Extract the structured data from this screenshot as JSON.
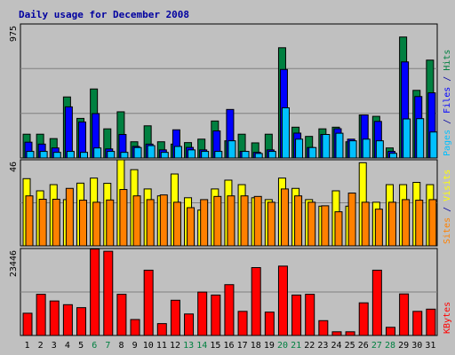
{
  "colors": {
    "background": "#C0C0C0",
    "plot_background": "#C0C0C0",
    "frame": "#000000",
    "title": "#0000A0",
    "grid": "#808080",
    "tick_text": "#000000",
    "weekend_tick_text": "#008040",
    "hits": "#008040",
    "files": "#0000FF",
    "pages": "#00C0FF",
    "visits": "#FFFF00",
    "sites": "#FF8000",
    "kbytes": "#FF0000",
    "separator": "#0000A0"
  },
  "chart_data": {
    "type": "bar",
    "title": "Daily usage for December 2008",
    "categories": [
      "1",
      "2",
      "3",
      "4",
      "5",
      "6",
      "7",
      "8",
      "9",
      "10",
      "11",
      "12",
      "13",
      "14",
      "15",
      "16",
      "17",
      "18",
      "19",
      "20",
      "21",
      "22",
      "23",
      "24",
      "25",
      "26",
      "27",
      "28",
      "29",
      "30",
      "31"
    ],
    "weekend_days": [
      "6",
      "7",
      "13",
      "14",
      "20",
      "21",
      "27",
      "28"
    ],
    "panels": [
      {
        "id": "hits",
        "ymax_label": "975",
        "ylim": [
          0,
          975
        ],
        "side_label": {
          "parts": [
            "Pages",
            "Files",
            "Hits"
          ],
          "separator": " / "
        },
        "series": [
          {
            "name": "Hits",
            "color_key": "hits",
            "values": [
              173,
              173,
              141,
              444,
              288,
              502,
              212,
              336,
              118,
              234,
              118,
              101,
              112,
              137,
              269,
              125,
              173,
              110,
              173,
              802,
              224,
              157,
              212,
              224,
              118,
              313,
              303,
              73,
              880,
              492,
              712
            ]
          },
          {
            "name": "Files",
            "color_key": "files",
            "values": [
              115,
              101,
              73,
              372,
              262,
              323,
              66,
              171,
              84,
              101,
              59,
              205,
              77,
              59,
              197,
              353,
              48,
              41,
              59,
              644,
              181,
              76,
              171,
              213,
              137,
              313,
              266,
              48,
              699,
              447,
              474
            ]
          },
          {
            "name": "Pages",
            "color_key": "pages",
            "values": [
              48,
              48,
              41,
              48,
              41,
              73,
              48,
              41,
              76,
              90,
              41,
              84,
              59,
              48,
              48,
              125,
              48,
              33,
              48,
              365,
              137,
              76,
              171,
              180,
              125,
              137,
              125,
              34,
              284,
              286,
              189
            ]
          }
        ]
      },
      {
        "id": "visits",
        "ymax_label": "46",
        "ylim": [
          0,
          46
        ],
        "side_label": {
          "parts": [
            "Sites",
            "Visits"
          ],
          "separator": " / "
        },
        "series": [
          {
            "name": "Visits",
            "color_key": "visits",
            "values": [
              35.9,
              29.4,
              32.7,
              24.7,
              33.5,
              36.2,
              33.4,
              48.2,
              40.7,
              30.4,
              26.7,
              38.4,
              25.7,
              19.1,
              30.4,
              35.1,
              32.7,
              25.7,
              24.7,
              36.2,
              30.7,
              24.7,
              21.2,
              29.4,
              21.2,
              44.4,
              23.3,
              32.7,
              32.7,
              33.9,
              32.7
            ]
          },
          {
            "name": "Sites",
            "color_key": "sites",
            "values": [
              26.7,
              24.9,
              24.9,
              30.7,
              24.4,
              23.3,
              24.5,
              30.1,
              26.7,
              24.7,
              27.2,
              23.3,
              20.4,
              24.7,
              26.4,
              26.7,
              26.7,
              26.4,
              23.3,
              30.4,
              26.7,
              23.3,
              21.4,
              18.2,
              28.2,
              23.3,
              19.6,
              23.3,
              24.7,
              24.4,
              24.7
            ]
          }
        ]
      },
      {
        "id": "kbytes",
        "ymax_label": "23446",
        "ylim": [
          0,
          23446
        ],
        "side_label": {
          "parts": [
            "KBytes"
          ],
          "separator": ""
        },
        "series": [
          {
            "name": "KBytes",
            "color_key": "kbytes",
            "values": [
              6000,
              11100,
              9300,
              8300,
              7500,
              23300,
              22700,
              11100,
              4300,
              17600,
              3200,
              9500,
              5800,
              11700,
              10900,
              13700,
              6500,
              18300,
              6300,
              18700,
              10900,
              11100,
              4000,
              1000,
              1000,
              8800,
              17600,
              2200,
              11200,
              6500,
              7100
            ]
          }
        ]
      }
    ]
  }
}
